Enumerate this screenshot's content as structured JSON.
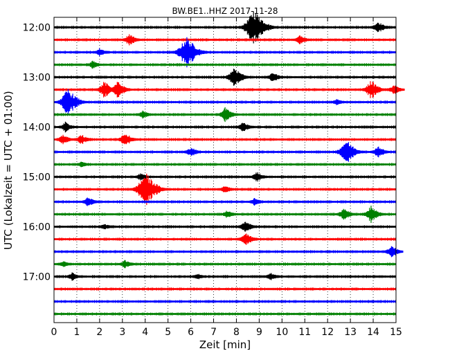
{
  "chart_data": {
    "type": "line",
    "title": "BW.BE1..HHZ 2017-11-28",
    "xlabel": "Zeit  [min]",
    "ylabel": "UTC (Lokalzeit = UTC + 01:00)",
    "xlim": [
      0,
      15
    ],
    "x_ticks": [
      "0",
      "1",
      "2",
      "3",
      "4",
      "5",
      "6",
      "7",
      "8",
      "9",
      "10",
      "11",
      "12",
      "13",
      "14",
      "15"
    ],
    "y_tick_labels": [
      "12:00",
      "13:00",
      "14:00",
      "15:00",
      "16:00",
      "17:00"
    ],
    "grid": "vertical dotted",
    "colors": [
      "#000000",
      "#ff0000",
      "#0000ff",
      "#008000"
    ],
    "series": [
      {
        "time": "12:00",
        "color": "#000000",
        "bursts": [
          [
            8.75,
            1.6
          ],
          [
            14.2,
            0.5
          ]
        ]
      },
      {
        "time": "12:15",
        "color": "#ff0000",
        "bursts": [
          [
            3.3,
            0.5
          ],
          [
            10.8,
            0.4
          ]
        ]
      },
      {
        "time": "12:30",
        "color": "#0000ff",
        "bursts": [
          [
            5.8,
            1.4
          ],
          [
            2.0,
            0.3
          ]
        ]
      },
      {
        "time": "12:45",
        "color": "#008000",
        "bursts": [
          [
            1.7,
            0.3
          ]
        ]
      },
      {
        "time": "13:00",
        "color": "#000000",
        "bursts": [
          [
            7.9,
            0.9
          ],
          [
            9.6,
            0.4
          ]
        ]
      },
      {
        "time": "13:15",
        "color": "#ff0000",
        "bursts": [
          [
            2.2,
            0.7
          ],
          [
            2.8,
            0.7
          ],
          [
            13.9,
            0.8
          ],
          [
            14.9,
            0.4
          ]
        ]
      },
      {
        "time": "13:30",
        "color": "#0000ff",
        "bursts": [
          [
            0.6,
            1.2
          ],
          [
            12.4,
            0.2
          ]
        ]
      },
      {
        "time": "13:45",
        "color": "#008000",
        "bursts": [
          [
            7.5,
            0.6
          ],
          [
            3.9,
            0.3
          ]
        ]
      },
      {
        "time": "14:00",
        "color": "#000000",
        "bursts": [
          [
            0.5,
            0.4
          ],
          [
            8.3,
            0.4
          ]
        ]
      },
      {
        "time": "14:15",
        "color": "#ff0000",
        "bursts": [
          [
            3.1,
            0.6
          ],
          [
            0.4,
            0.4
          ],
          [
            1.2,
            0.4
          ]
        ]
      },
      {
        "time": "14:30",
        "color": "#0000ff",
        "bursts": [
          [
            12.8,
            1.1
          ],
          [
            14.2,
            0.5
          ],
          [
            6.0,
            0.4
          ]
        ]
      },
      {
        "time": "14:45",
        "color": "#008000",
        "bursts": [
          [
            1.2,
            0.2
          ]
        ]
      },
      {
        "time": "15:00",
        "color": "#000000",
        "bursts": [
          [
            8.9,
            0.4
          ],
          [
            3.8,
            0.3
          ]
        ]
      },
      {
        "time": "15:15",
        "color": "#ff0000",
        "bursts": [
          [
            4.0,
            1.5
          ],
          [
            7.5,
            0.3
          ]
        ]
      },
      {
        "time": "15:30",
        "color": "#0000ff",
        "bursts": [
          [
            1.5,
            0.4
          ],
          [
            8.8,
            0.3
          ]
        ]
      },
      {
        "time": "15:45",
        "color": "#008000",
        "bursts": [
          [
            12.7,
            0.5
          ],
          [
            13.9,
            0.7
          ],
          [
            7.6,
            0.3
          ]
        ]
      },
      {
        "time": "16:00",
        "color": "#000000",
        "bursts": [
          [
            8.4,
            0.5
          ],
          [
            2.2,
            0.2
          ]
        ]
      },
      {
        "time": "16:15",
        "color": "#ff0000",
        "bursts": [
          [
            8.4,
            0.6
          ]
        ]
      },
      {
        "time": "16:30",
        "color": "#0000ff",
        "bursts": [
          [
            14.8,
            0.5
          ]
        ]
      },
      {
        "time": "16:45",
        "color": "#008000",
        "bursts": [
          [
            3.1,
            0.3
          ],
          [
            0.4,
            0.2
          ]
        ]
      },
      {
        "time": "17:00",
        "color": "#000000",
        "bursts": [
          [
            0.8,
            0.3
          ],
          [
            9.5,
            0.3
          ],
          [
            6.3,
            0.2
          ]
        ]
      },
      {
        "time": "17:15",
        "color": "#ff0000",
        "bursts": []
      },
      {
        "time": "17:30",
        "color": "#0000ff",
        "bursts": []
      },
      {
        "time": "17:45",
        "color": "#008000",
        "bursts": []
      }
    ]
  }
}
